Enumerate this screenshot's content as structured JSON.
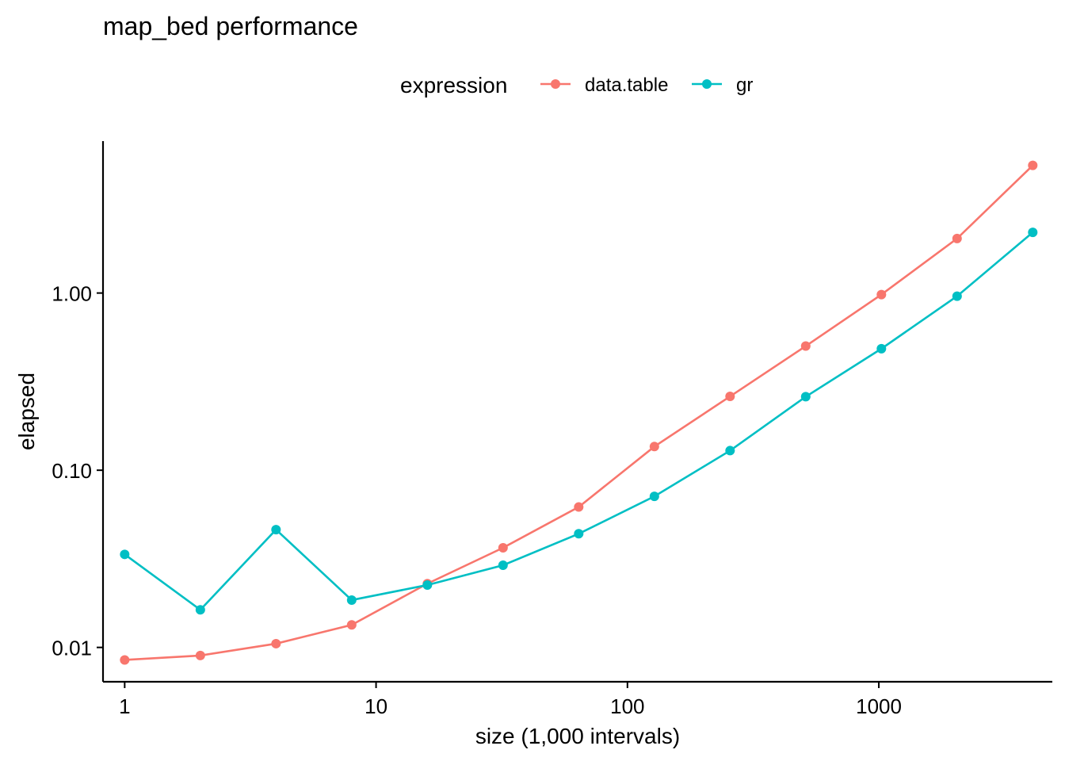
{
  "chart_data": {
    "type": "line",
    "title": "map_bed performance",
    "xlabel": "size (1,000 intervals)",
    "ylabel": "elapsed",
    "x_scale": "log10",
    "y_scale": "log10",
    "xlim": [
      0.82,
      4900
    ],
    "ylim": [
      0.0064,
      7.2
    ],
    "x_ticks": [
      1,
      10,
      100,
      1000
    ],
    "x_tick_labels": [
      "1",
      "10",
      "100",
      "1000"
    ],
    "y_ticks": [
      0.01,
      0.1,
      1.0
    ],
    "y_tick_labels": [
      "0.01",
      "0.10",
      "1.00"
    ],
    "grid": false,
    "legend": {
      "title": "expression",
      "position": "top"
    },
    "x": [
      1,
      2,
      4,
      8,
      16,
      32,
      64,
      128,
      256,
      512,
      1024,
      2048,
      4096
    ],
    "series": [
      {
        "name": "data.table",
        "color": "#F8766D",
        "values": [
          0.0085,
          0.009,
          0.0105,
          0.0134,
          0.0229,
          0.0365,
          0.062,
          0.136,
          0.261,
          0.502,
          0.98,
          2.03,
          5.25
        ]
      },
      {
        "name": "gr",
        "color": "#00BFC4",
        "values": [
          0.0335,
          0.0163,
          0.0462,
          0.0185,
          0.0225,
          0.0291,
          0.0438,
          0.0712,
          0.129,
          0.26,
          0.485,
          0.96,
          2.2
        ]
      }
    ]
  }
}
